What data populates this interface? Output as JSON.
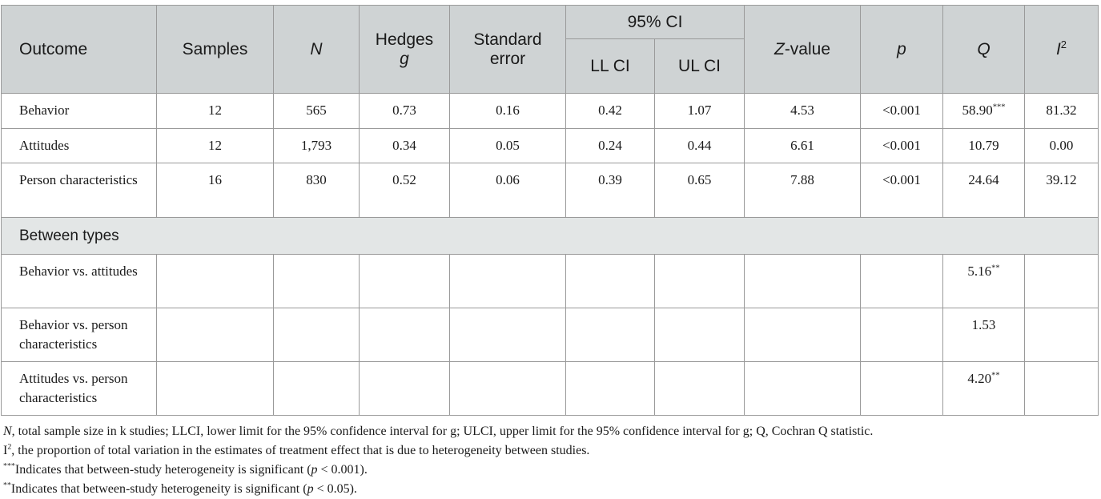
{
  "table": {
    "headers": {
      "outcome": "Outcome",
      "samples": "Samples",
      "n": "N",
      "hedges": "Hedges",
      "hedges_g": "g",
      "std_error": "Standard error",
      "ci_group": "95% CI",
      "ll_ci": "LL CI",
      "ul_ci": "UL CI",
      "z_var": "Z",
      "z_suffix": "-value",
      "p": "p",
      "q": "Q",
      "i2": "I",
      "i2_sup": "2"
    },
    "rows": [
      {
        "outcome": "Behavior",
        "samples": "12",
        "n": "565",
        "g": "0.73",
        "se": "0.16",
        "ll": "0.42",
        "ul": "1.07",
        "z": "4.53",
        "p": "<0.001",
        "q": "58.90",
        "q_sup": "***",
        "i2": "81.32"
      },
      {
        "outcome": "Attitudes",
        "samples": "12",
        "n": "1,793",
        "g": "0.34",
        "se": "0.05",
        "ll": "0.24",
        "ul": "0.44",
        "z": "6.61",
        "p": "<0.001",
        "q": "10.79",
        "q_sup": "",
        "i2": "0.00"
      },
      {
        "outcome": "Person characteristics",
        "samples": "16",
        "n": "830",
        "g": "0.52",
        "se": "0.06",
        "ll": "0.39",
        "ul": "0.65",
        "z": "7.88",
        "p": "<0.001",
        "q": "24.64",
        "q_sup": "",
        "i2": "39.12"
      }
    ],
    "section_label": "Between types",
    "between_rows": [
      {
        "outcome": "Behavior vs. attitudes",
        "q": "5.16",
        "q_sup": "**"
      },
      {
        "outcome": "Behavior vs. person characteristics",
        "q": "1.53",
        "q_sup": ""
      },
      {
        "outcome": "Attitudes vs. person characteristics",
        "q": "4.20",
        "q_sup": "**"
      }
    ]
  },
  "notes": {
    "n1_var": "N",
    "n1_text": ", total sample size in k studies; LLCI, lower limit for the 95% confidence interval for g; ULCI, upper limit for the 95% confidence interval for g; Q, Cochran Q statistic.",
    "n2_var": "I",
    "n2_sup": "2",
    "n2_text": ", the proportion of total variation in the estimates of treatment effect that is due to heterogeneity between studies.",
    "n3_sup": "***",
    "n3_text_a": "Indicates that between-study heterogeneity is significant (",
    "n3_p": "p",
    "n3_text_b": " < 0.001).",
    "n4_sup": "**",
    "n4_text_a": "Indicates that between-study heterogeneity is significant (",
    "n4_p": "p",
    "n4_text_b": " < 0.05)."
  }
}
